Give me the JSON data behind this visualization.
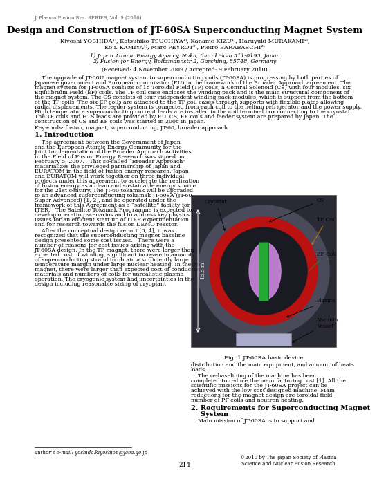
{
  "journal_header": "J. Plasma Fusion Res. SERIES, Vol. 9 (2010)",
  "title": "Design and Construction of JT-60SA Superconducting Magnet System",
  "authors1": "Kiyoshi YOSHIDA¹⁾, Katsuhiko TSUCHIYA¹⁾, Kaname KIZU¹⁾, Haruyuki MURAKAMI¹⁾,",
  "authors2": "Koji. KAMIYA¹⁾, Marc PEYROT²⁾, Pietro BARABASCHI²⁾",
  "affil1": "1) Japan Atomic Energy Agency, Naka, Ibaraki-ken 311-0193, Japan",
  "affil2": "2) Fusion for Energy, Boltzmannstr 2, Garching, 85748, Germany",
  "received": "(Received: 4 November 2009 / Accepted: 9 February 2010)",
  "keywords": "Keywords: fusion, magnet, superconducting, JT-60, broader approach",
  "sec1_title": "1. Introduction",
  "fig_caption": "Fig. 1 JT-60SA basic device",
  "author_email": "author’s e-mail: yoshida.kiyoshi56@jaea.go.jp",
  "page_number": "214",
  "copyright": "©2010 by The Japan Society of Plasma\nScience and Nuclear Fusion Research",
  "abs_lines": [
    "    The upgrade of JT-60U magnet system to superconducting coils (JT-60SA) is progressing by both parties of",
    "Japanese government and European commission (EU) in the framework of the Broader Approach agreement. The",
    "magnet system for JT-60SA consists of 18 Toroidal Field (TF) coils, a Central Solenoid (CS) with four modules, six",
    "Equilibrium Field (EF) coils. The TF coil case encloses the winding pack and is the main structural component of",
    "the magnet system. The CS consists of four independent winding pack modules, which is support from the bottom",
    "of the TF coils. The six EF coils are attached to the TF coil cases through supports with flexible plates allowing",
    "radial displacements. The feeder system is connected from each coil to the helium refrigerator and the power supply.",
    "High temperature superconducting current leads are installed in the coil terminal box connecting to the cryostat.",
    "The TF coils and HTS leads are provided by EU. CS, EF coils and feeder system are prepared by Japan. The",
    "construction of CS and EF coils was started in 2008 in Japan."
  ],
  "left_lines1": [
    "    The agreement between the Government of Japan",
    "and the European Atomic Energy Community for the",
    "Joint Implementation of the Broader Approach Activities",
    "in the Field of Fusion Energy Research was signed on",
    "February 5, 2007.   This so-called “Broader Approach”",
    "materializes the privileged partnership of Japan and",
    "EURATOM in the field of fusion energy research. Japan",
    "and EURATOM will work together on three individual",
    "projects under this agreement to accelerate the realization",
    "of fusion energy as a clean and sustainable energy source",
    "for the 21st century. The JT-60 tokamak will be upgraded",
    "to an advanced superconducting tokamak JT-60SA (JT-60",
    "Super Advanced) [1, 2], and be operated under the",
    "framework of this Agreement as a “satellite” facility for",
    "ITER.   The Satellite Tokamak Programme is expected to",
    "develop operating scenarios and to address key physics",
    "issues for an efficient start up of ITER experimentation",
    "and for research towards the fusion DEMO reactor."
  ],
  "left_lines2": [
    "    After the conceptual design report [3, 4], it was",
    "recognized that the superconducting magnet baseline",
    "design presented some cost issues.   There were a",
    "number of reasons for cost issues arising with the",
    "JT-60SA design. In the TF magnet, there were larger than",
    "expected cost of winding, significant increase in amount",
    "of superconducting strand to obtain a sufficiently large",
    "temperature margin under large nuclear heating. In the PF",
    "magnet, there were larger than expected cost of conductor",
    "materials and numbers of coils for unrealistic plasma",
    "operation. The cryogenic system had uncertainties in the",
    "design including reasonable sizing of cryoplant"
  ],
  "right_lines1": [
    "distribution and the main equipment, and amount of heats",
    "loads."
  ],
  "right_lines2": [
    "    The re-baselining of the machine has been",
    "completed to reduce the manufacturing cost [1]. All the",
    "scientific missions for the JT-60SA project can be",
    "achieved with the low cost designed machine. Main",
    "reductions for the magnet design are toroidal field,",
    "number of PF coils and neutron heating."
  ],
  "sec2_title1": "2. Requirements for Superconducting Magnet",
  "sec2_title2": "    System",
  "sec2_line1": "    Main mission of JT-60SA is to support and",
  "bg_color": "#ffffff"
}
